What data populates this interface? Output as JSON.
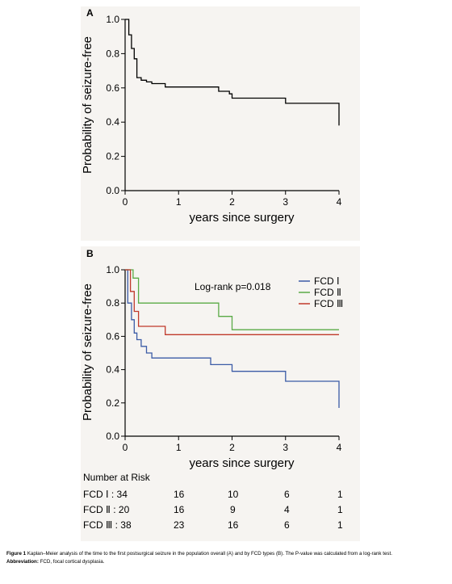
{
  "panels": {
    "a_letter": "A",
    "b_letter": "B"
  },
  "chart_data": [
    {
      "panel": "A",
      "type": "line",
      "step": true,
      "xlabel": "years since surgery",
      "ylabel": "Probability of seizure-free",
      "xlim": [
        0,
        4
      ],
      "ylim": [
        0.0,
        1.0
      ],
      "xticks": [
        "0",
        "1",
        "2",
        "3",
        "4"
      ],
      "yticks": [
        "0.0",
        "0.2",
        "0.4",
        "0.6",
        "0.8",
        "1.0"
      ],
      "series": [
        {
          "color": "#000000",
          "points": [
            [
              0,
              1.0
            ],
            [
              0.07,
              1.0
            ],
            [
              0.07,
              0.91
            ],
            [
              0.12,
              0.91
            ],
            [
              0.12,
              0.83
            ],
            [
              0.17,
              0.83
            ],
            [
              0.17,
              0.77
            ],
            [
              0.22,
              0.77
            ],
            [
              0.22,
              0.66
            ],
            [
              0.3,
              0.66
            ],
            [
              0.3,
              0.645
            ],
            [
              0.4,
              0.645
            ],
            [
              0.4,
              0.635
            ],
            [
              0.5,
              0.635
            ],
            [
              0.5,
              0.625
            ],
            [
              0.75,
              0.625
            ],
            [
              0.75,
              0.605
            ],
            [
              1.75,
              0.605
            ],
            [
              1.75,
              0.58
            ],
            [
              1.95,
              0.58
            ],
            [
              1.95,
              0.565
            ],
            [
              2.0,
              0.565
            ],
            [
              2.0,
              0.54
            ],
            [
              3.0,
              0.54
            ],
            [
              3.0,
              0.51
            ],
            [
              4.0,
              0.51
            ],
            [
              4.0,
              0.38
            ]
          ]
        }
      ]
    },
    {
      "panel": "B",
      "type": "line",
      "step": true,
      "xlabel": "years since surgery",
      "ylabel": "Probability of seizure-free",
      "xlim": [
        0,
        4
      ],
      "ylim": [
        0.0,
        1.0
      ],
      "xticks": [
        "0",
        "1",
        "2",
        "3",
        "4"
      ],
      "yticks": [
        "0.0",
        "0.2",
        "0.4",
        "0.6",
        "0.8",
        "1.0"
      ],
      "annotation": "Log-rank p=0.018",
      "legend_position": "top-right",
      "series": [
        {
          "name": "FCD Ⅰ",
          "color": "#3b5ba6",
          "points": [
            [
              0,
              1.0
            ],
            [
              0.05,
              1.0
            ],
            [
              0.05,
              0.8
            ],
            [
              0.12,
              0.8
            ],
            [
              0.12,
              0.7
            ],
            [
              0.17,
              0.7
            ],
            [
              0.17,
              0.62
            ],
            [
              0.22,
              0.62
            ],
            [
              0.22,
              0.58
            ],
            [
              0.3,
              0.58
            ],
            [
              0.3,
              0.54
            ],
            [
              0.4,
              0.54
            ],
            [
              0.4,
              0.5
            ],
            [
              0.5,
              0.5
            ],
            [
              0.5,
              0.47
            ],
            [
              1.6,
              0.47
            ],
            [
              1.6,
              0.43
            ],
            [
              2.0,
              0.43
            ],
            [
              2.0,
              0.39
            ],
            [
              3.0,
              0.39
            ],
            [
              3.0,
              0.33
            ],
            [
              4.0,
              0.33
            ],
            [
              4.0,
              0.17
            ]
          ]
        },
        {
          "name": "FCD Ⅱ",
          "color": "#5aaa46",
          "points": [
            [
              0,
              1.0
            ],
            [
              0.15,
              1.0
            ],
            [
              0.15,
              0.95
            ],
            [
              0.25,
              0.95
            ],
            [
              0.25,
              0.8
            ],
            [
              1.75,
              0.8
            ],
            [
              1.75,
              0.72
            ],
            [
              2.0,
              0.72
            ],
            [
              2.0,
              0.64
            ],
            [
              4.0,
              0.64
            ]
          ]
        },
        {
          "name": "FCD Ⅲ",
          "color": "#c0392b",
          "points": [
            [
              0,
              1.0
            ],
            [
              0.1,
              1.0
            ],
            [
              0.1,
              0.87
            ],
            [
              0.17,
              0.87
            ],
            [
              0.17,
              0.75
            ],
            [
              0.25,
              0.75
            ],
            [
              0.25,
              0.66
            ],
            [
              0.75,
              0.66
            ],
            [
              0.75,
              0.61
            ],
            [
              4.0,
              0.61
            ]
          ]
        }
      ]
    }
  ],
  "risk_table": {
    "title": "Number at Risk",
    "rows": [
      {
        "label": "FCD Ⅰ : 34",
        "values": [
          "16",
          "10",
          "6",
          "1"
        ]
      },
      {
        "label": "FCD Ⅱ : 20",
        "values": [
          "16",
          "9",
          "4",
          "1"
        ]
      },
      {
        "label": "FCD Ⅲ : 38",
        "values": [
          "23",
          "16",
          "6",
          "1"
        ]
      }
    ]
  },
  "caption": {
    "line1_bold": "Figure 1",
    "line1_text": " Kaplan–Meier analysis of the time to the first postsurgical seizure in the population overall (A) and by FCD types (B). The P-value was calculated from a log-rank test.",
    "line2_bold": "Abbreviation:",
    "line2_text": " FCD, focal cortical dysplasia."
  }
}
